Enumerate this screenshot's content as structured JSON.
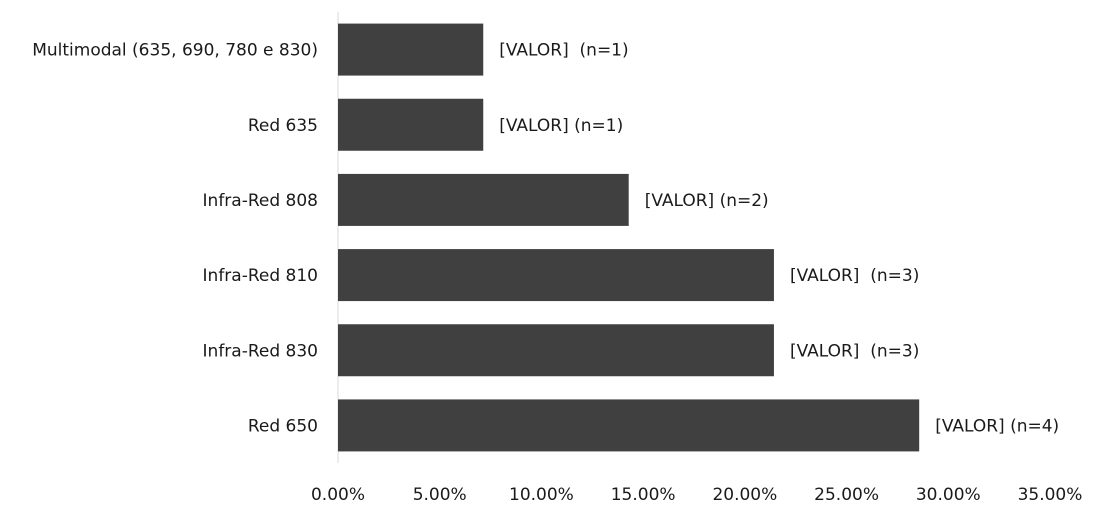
{
  "chart_data": {
    "type": "bar",
    "orientation": "horizontal",
    "categories": [
      "Multimodal (635, 690, 780 e 830)",
      "Red 635",
      "Infra-Red 808",
      "Infra-Red 810",
      "Infra-Red 830",
      "Red 650"
    ],
    "values": [
      7.14,
      7.14,
      14.29,
      21.43,
      21.43,
      28.57
    ],
    "data_labels": [
      "[VALOR]  (n=1)",
      "[VALOR] (n=1)",
      "[VALOR] (n=2)",
      "[VALOR]  (n=3)",
      "[VALOR]  (n=3)",
      "[VALOR] (n=4)"
    ],
    "xlim": [
      0,
      35
    ],
    "x_ticks": [
      0,
      5,
      10,
      15,
      20,
      25,
      30,
      35
    ],
    "x_tick_labels": [
      "0.00%",
      "5.00%",
      "10.00%",
      "15.00%",
      "20.00%",
      "25.00%",
      "30.00%",
      "35.00%"
    ],
    "title": "",
    "xlabel": "",
    "ylabel": "",
    "grid": false,
    "legend": "none",
    "bar_color": "#404040",
    "axis_color": "#d9d9d9"
  }
}
